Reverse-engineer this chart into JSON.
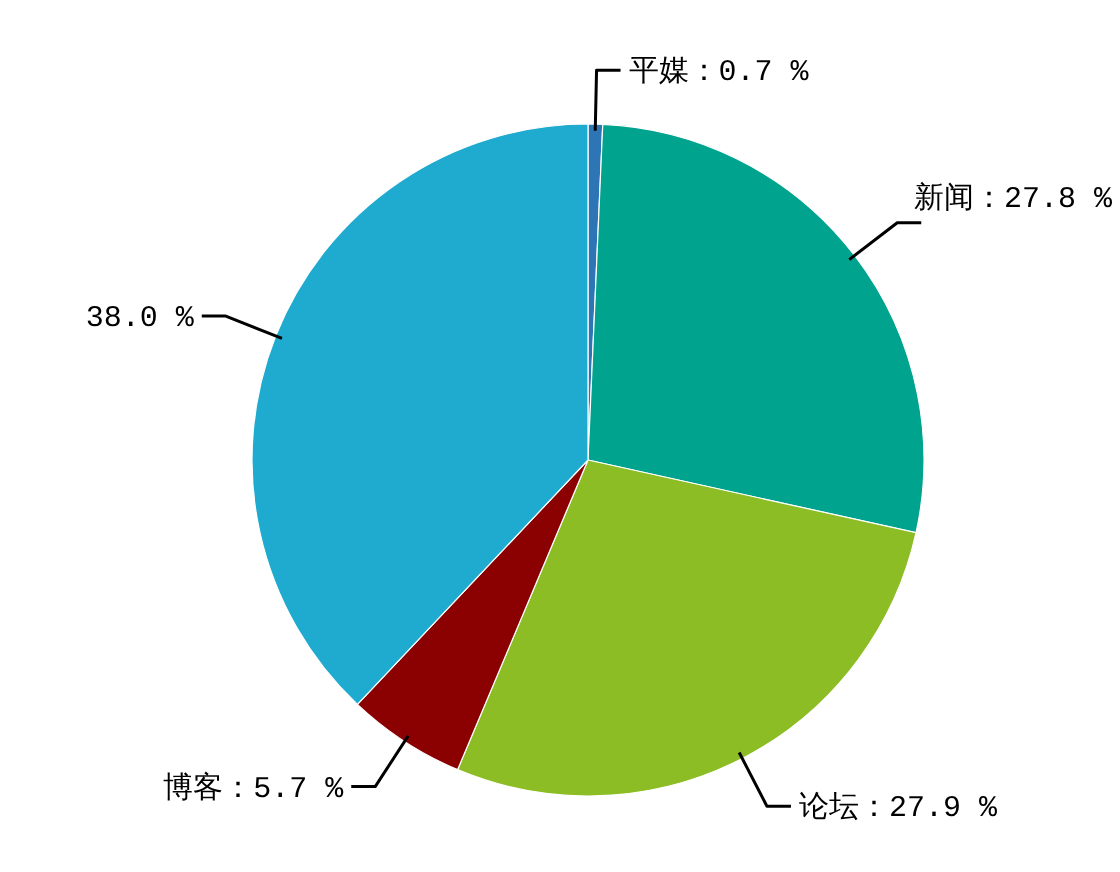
{
  "chart_data": {
    "type": "pie",
    "categories": [
      "平媒",
      "新闻",
      "论坛",
      "博客",
      null
    ],
    "values": [
      0.7,
      27.8,
      27.9,
      5.7,
      38.0
    ],
    "value_labels": [
      "0.7 %",
      "27.8 %",
      "27.9 %",
      "5.7 %",
      "38.0 %"
    ],
    "colors": [
      "#2e75b6",
      "#00a38d",
      "#8cbd24",
      "#8b0000",
      "#1fabcf"
    ]
  }
}
